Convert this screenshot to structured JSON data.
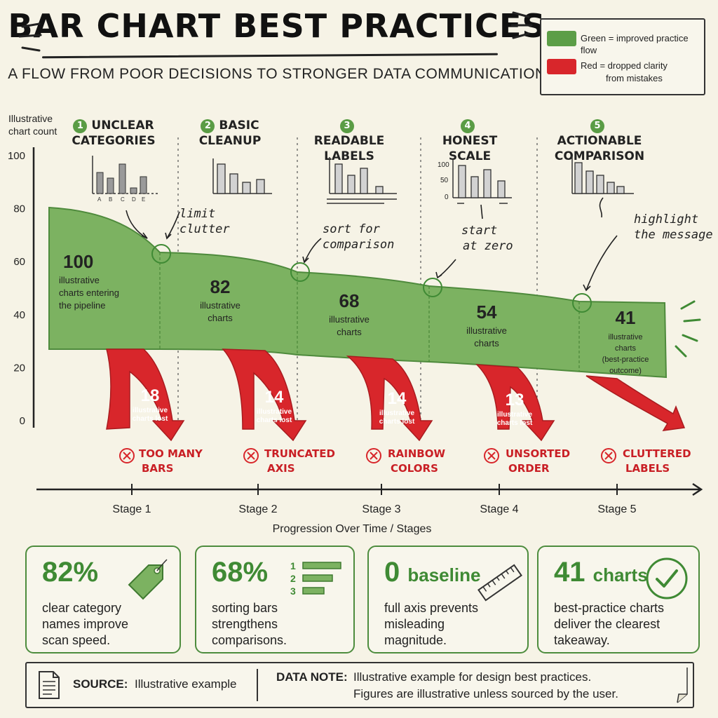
{
  "header": {
    "title": "BAR CHART BEST PRACTICES",
    "subtitle": "A FLOW FROM POOR DECISIONS TO STRONGER DATA COMMUNICATION"
  },
  "legend": {
    "green_text": "Green = improved practice flow",
    "red_text_line1": "Red = dropped clarity",
    "red_text_line2": "from mistakes",
    "green_color": "#5c9e47",
    "red_color": "#d8262b"
  },
  "chart_data": {
    "type": "area",
    "ylabel_line1": "Illustrative",
    "ylabel_line2": "chart count",
    "xlabel": "Progression Over Time / Stages",
    "y_ticks": [
      "100",
      "80",
      "60",
      "40",
      "20",
      "0"
    ],
    "categories": [
      "Stage 1",
      "Stage 2",
      "Stage 3",
      "Stage 4",
      "Stage 5"
    ],
    "values": [
      100,
      82,
      68,
      54,
      41
    ],
    "remaining_labels": [
      {
        "value": "100",
        "line1": "illustrative",
        "line2": "charts entering",
        "line3": "the pipeline"
      },
      {
        "value": "82",
        "line1": "illustrative",
        "line2": "charts",
        "line3": ""
      },
      {
        "value": "68",
        "line1": "illustrative",
        "line2": "charts",
        "line3": ""
      },
      {
        "value": "54",
        "line1": "illustrative",
        "line2": "charts",
        "line3": ""
      },
      {
        "value": "41",
        "line1": "illustrative",
        "line2": "charts",
        "line3": "(best-practice",
        "line4": "outcome)"
      }
    ],
    "losses": [
      {
        "value": "18",
        "line1": "illustrative",
        "line2": "charts lost",
        "mistake_line1": "TOO MANY",
        "mistake_line2": "BARS"
      },
      {
        "value": "14",
        "line1": "illustrative",
        "line2": "charts lost",
        "mistake_line1": "TRUNCATED",
        "mistake_line2": "AXIS"
      },
      {
        "value": "14",
        "line1": "illustrative",
        "line2": "charts lost",
        "mistake_line1": "RAINBOW",
        "mistake_line2": "COLORS"
      },
      {
        "value": "13",
        "line1": "illustrative",
        "line2": "charts lost",
        "mistake_line1": "UNSORTED",
        "mistake_line2": "ORDER"
      },
      {
        "value": "",
        "line1": "",
        "line2": "",
        "mistake_line1": "CLUTTERED",
        "mistake_line2": "LABELS"
      }
    ],
    "stages": [
      {
        "num": "1",
        "line1": "UNCLEAR",
        "line2": "CATEGORIES"
      },
      {
        "num": "2",
        "line1": "BASIC",
        "line2": "CLEANUP"
      },
      {
        "num": "3",
        "line1": "READABLE",
        "line2": "LABELS"
      },
      {
        "num": "4",
        "line1": "HONEST",
        "line2": "SCALE"
      },
      {
        "num": "5",
        "line1": "ACTIONABLE",
        "line2": "COMPARISON"
      }
    ],
    "annotations": [
      {
        "line1": "limit",
        "line2": "clutter"
      },
      {
        "line1": "sort for",
        "line2": "comparison"
      },
      {
        "line1": "start",
        "line2": "at zero"
      },
      {
        "line1": "highlight",
        "line2": "the message"
      }
    ],
    "mini_chart_labels": [
      "A",
      "B",
      "C",
      "D",
      "E"
    ],
    "mini_axis_ticks": [
      "100",
      "50",
      "0"
    ]
  },
  "cards": [
    {
      "value": "82%",
      "text_line1": "clear category",
      "text_line2": "names improve",
      "text_line3": "scan speed.",
      "icon": "tag-icon"
    },
    {
      "value": "68%",
      "text_line1": "sorting bars",
      "text_line2": "strengthens",
      "text_line3": "comparisons.",
      "icon": "sorted-list-icon",
      "list_numbers": [
        "1",
        "2",
        "3"
      ]
    },
    {
      "value": "0",
      "value_suffix": "baseline",
      "text_line1": "full axis prevents",
      "text_line2": "misleading",
      "text_line3": "magnitude.",
      "icon": "ruler-icon"
    },
    {
      "value": "41",
      "value_suffix": "charts",
      "text_line1": "best-practice charts",
      "text_line2": "deliver the clearest",
      "text_line3": "takeaway.",
      "icon": "checkmark-icon"
    }
  ],
  "footer": {
    "source_label": "SOURCE:",
    "source_text": "Illustrative example",
    "note_label": "DATA NOTE:",
    "note_line1": "Illustrative example for design best practices.",
    "note_line2": "Figures are illustrative unless sourced by the user."
  }
}
